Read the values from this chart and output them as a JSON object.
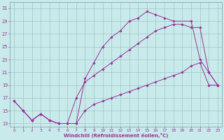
{
  "xlabel": "Windchill (Refroidissement éolien,°C)",
  "bg_color": "#c8eaea",
  "grid_color": "#9bbaba",
  "line_color": "#993399",
  "xlim": [
    -0.5,
    23.5
  ],
  "ylim": [
    12.5,
    32
  ],
  "xticks": [
    0,
    1,
    2,
    3,
    4,
    5,
    6,
    7,
    8,
    9,
    10,
    11,
    12,
    13,
    14,
    15,
    16,
    17,
    18,
    19,
    20,
    21,
    22,
    23
  ],
  "yticks": [
    13,
    15,
    17,
    19,
    21,
    23,
    25,
    27,
    29,
    31
  ],
  "line1_x": [
    0,
    1,
    2,
    3,
    4,
    5,
    6,
    7,
    8,
    9,
    10,
    11,
    12,
    13,
    14,
    15,
    16,
    17,
    18,
    20,
    21,
    22,
    23
  ],
  "line1_y": [
    16.5,
    15.0,
    13.5,
    14.5,
    13.5,
    13.0,
    13.0,
    13.0,
    20.0,
    22.5,
    25.0,
    26.5,
    27.5,
    29.0,
    29.5,
    30.5,
    30.0,
    29.5,
    29.0,
    29.0,
    23.0,
    21.0,
    19.0
  ],
  "line2_x": [
    0,
    1,
    2,
    3,
    4,
    5,
    6,
    7,
    8,
    9,
    10,
    11,
    12,
    13,
    14,
    15,
    16,
    17,
    18,
    19,
    20,
    21,
    22,
    23
  ],
  "line2_y": [
    16.5,
    15.0,
    13.5,
    14.5,
    13.5,
    13.0,
    13.0,
    17.0,
    19.5,
    20.5,
    21.5,
    22.5,
    23.5,
    24.5,
    25.5,
    26.5,
    27.5,
    28.0,
    28.5,
    28.5,
    28.0,
    28.0,
    21.0,
    19.0
  ],
  "line3_x": [
    1,
    2,
    3,
    4,
    5,
    6,
    7,
    8,
    9,
    10,
    11,
    12,
    13,
    14,
    15,
    16,
    17,
    18,
    19,
    20,
    21,
    22,
    23
  ],
  "line3_y": [
    15.0,
    13.5,
    14.5,
    13.5,
    13.0,
    13.0,
    13.0,
    15.0,
    16.0,
    16.5,
    17.0,
    17.5,
    18.0,
    18.5,
    19.0,
    19.5,
    20.0,
    20.5,
    21.0,
    22.0,
    22.5,
    19.0,
    19.0
  ]
}
